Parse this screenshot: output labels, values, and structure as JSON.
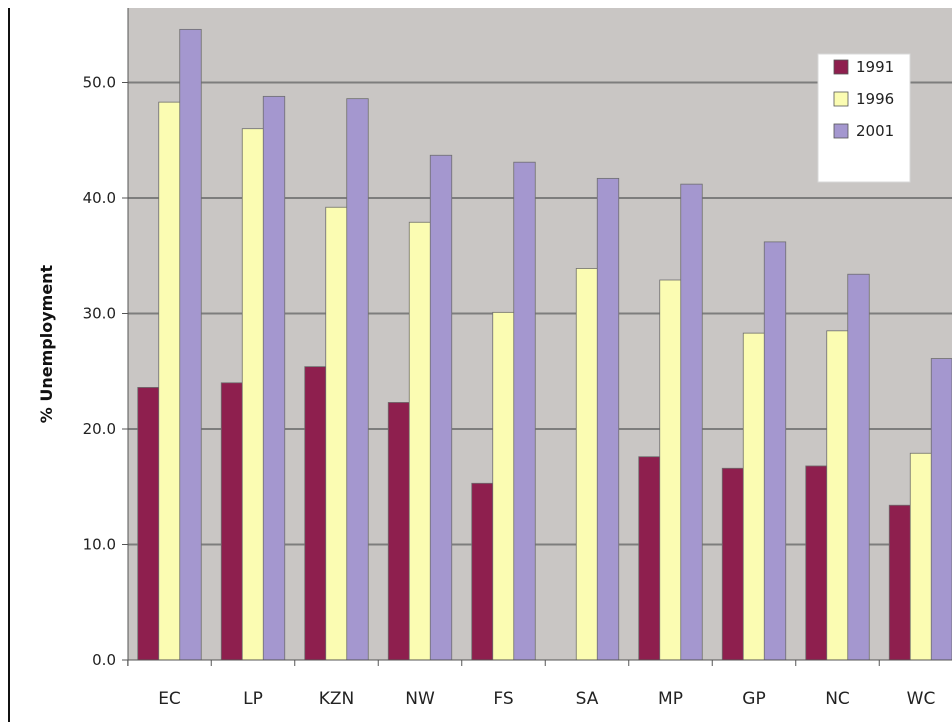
{
  "chart_data": {
    "type": "bar",
    "title": "",
    "xlabel": "",
    "ylabel": "% Unemployment",
    "ylim": [
      0,
      55
    ],
    "yticks": [
      "0.0",
      "10.0",
      "20.0",
      "30.0",
      "40.0",
      "50.0"
    ],
    "grid": true,
    "legend_position": "top-right",
    "plot_background": "#c9c6c4",
    "categories": [
      "EC",
      "LP",
      "KZN",
      "NW",
      "FS",
      "SA",
      "MP",
      "GP",
      "NC",
      "WC"
    ],
    "series": [
      {
        "name": "1991",
        "color": "#8e1f4e",
        "values": [
          23.6,
          24.0,
          25.4,
          22.3,
          15.3,
          null,
          17.6,
          16.6,
          16.8,
          13.4
        ]
      },
      {
        "name": "1996",
        "color": "#fbfcb2",
        "values": [
          48.3,
          46.0,
          39.2,
          37.9,
          30.1,
          33.9,
          32.9,
          28.3,
          28.5,
          17.9
        ]
      },
      {
        "name": "2001",
        "color": "#a497cf",
        "values": [
          54.6,
          48.8,
          48.6,
          43.7,
          43.1,
          41.7,
          41.2,
          36.2,
          33.4,
          26.1
        ]
      }
    ]
  }
}
